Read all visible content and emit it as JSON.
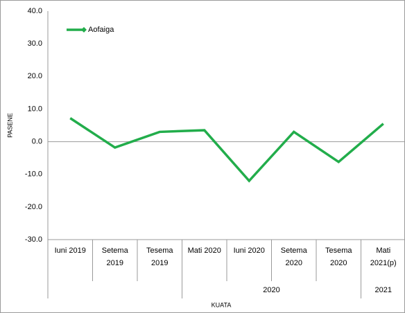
{
  "chart_data": {
    "type": "line",
    "y_label": "PASENE",
    "x_label": "KUATA",
    "categories": [
      "Iuni 2019",
      "Setema 2019",
      "Tesema 2019",
      "Mati 2020",
      "Iuni 2020",
      "Setema 2020",
      "Tesema 2020",
      "Mati 2021(p)"
    ],
    "category_groups": [
      null,
      null,
      null,
      "2020",
      "2020",
      "2020",
      "2020",
      "2021"
    ],
    "series": [
      {
        "name": "Aofaiga",
        "color": "#22ad4b",
        "values": [
          7.2,
          -1.8,
          3.0,
          3.5,
          -12.0,
          3.0,
          -6.2,
          5.5
        ]
      }
    ],
    "ylim": [
      -30,
      40
    ],
    "yticks": [
      {
        "value": -30,
        "label": "-30.0"
      },
      {
        "value": -20,
        "label": "-20.0"
      },
      {
        "value": -10,
        "label": "-10.0"
      },
      {
        "value": 0,
        "label": "0.0"
      },
      {
        "value": 10,
        "label": "10.0"
      },
      {
        "value": 20,
        "label": "20.0"
      },
      {
        "value": 30,
        "label": "30.0"
      },
      {
        "value": 40,
        "label": "40.0"
      }
    ],
    "legend": "upper left",
    "grid": false
  }
}
